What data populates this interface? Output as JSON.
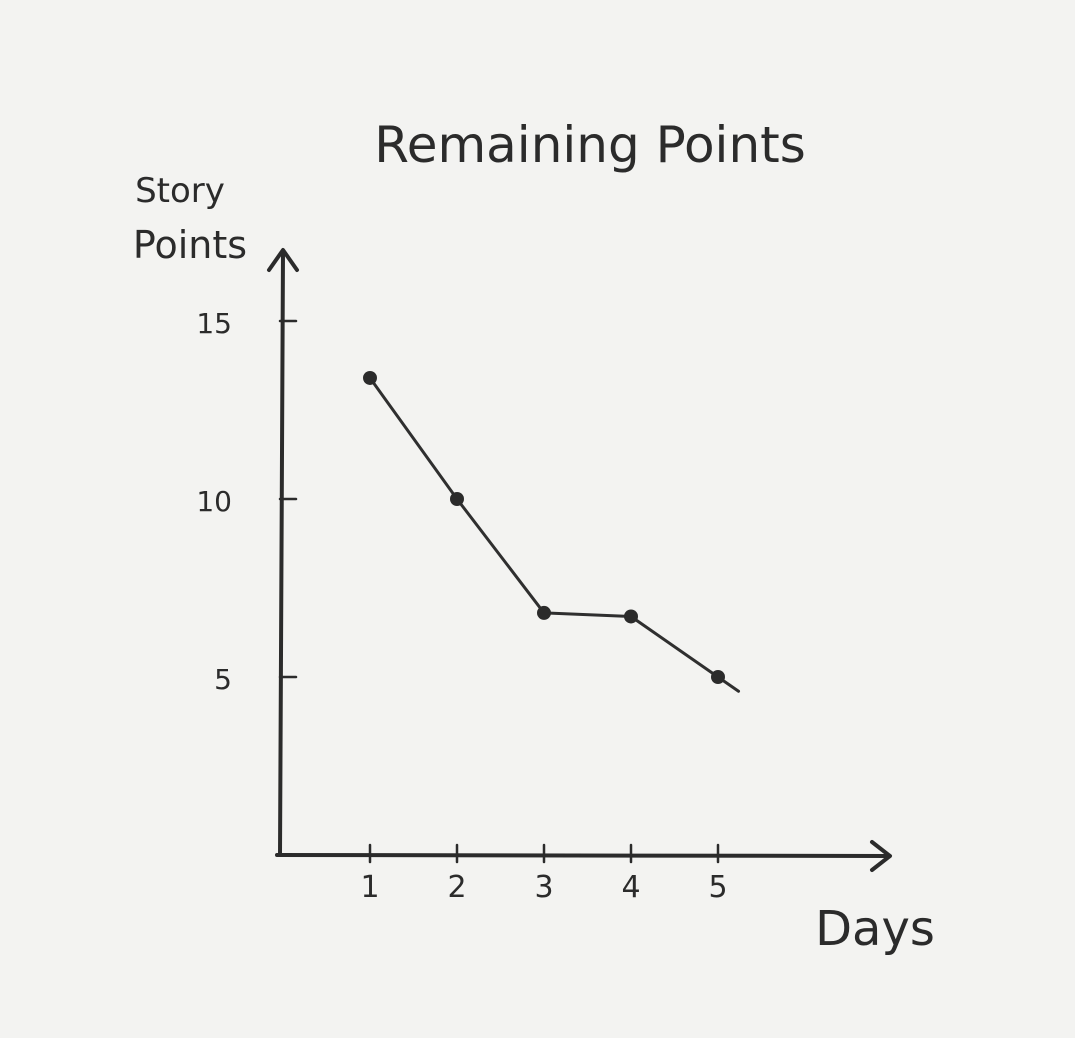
{
  "chart_data": {
    "type": "line",
    "title": "Remaining Points",
    "xlabel": "Days",
    "ylabel_line1": "Story",
    "ylabel_line2": "Points",
    "x": [
      1,
      2,
      3,
      4,
      5
    ],
    "x_tick_labels": [
      "1",
      "2",
      "3",
      "4",
      "5"
    ],
    "y_ticks": [
      5,
      10,
      15
    ],
    "y_tick_labels": [
      "5",
      "10",
      "15"
    ],
    "series": [
      {
        "values": [
          13.4,
          10.0,
          6.8,
          6.7,
          5.0
        ]
      }
    ],
    "xlim": [
      0,
      6
    ],
    "ylim": [
      0,
      17
    ],
    "grid": false,
    "color": "#2b2b2b"
  }
}
